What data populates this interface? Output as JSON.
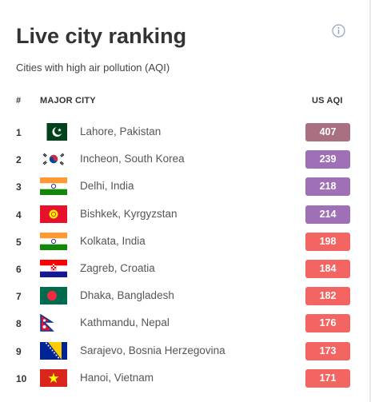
{
  "header": {
    "title": "Live city ranking",
    "subtitle": "Cities with high air pollution (AQI)",
    "info_icon": "info-circle-icon"
  },
  "columns": {
    "rank": "#",
    "city": "MAJOR CITY",
    "aqi": "US AQI"
  },
  "colors": {
    "hazardous": "#a87080",
    "very_unhealthy": "#a070b6",
    "unhealthy": "#f26563"
  },
  "rows": [
    {
      "rank": "1",
      "city": "Lahore, Pakistan",
      "aqi": "407",
      "level": "hazardous",
      "flag": "pakistan-flag-icon"
    },
    {
      "rank": "2",
      "city": "Incheon, South Korea",
      "aqi": "239",
      "level": "very_unhealthy",
      "flag": "south-korea-flag-icon"
    },
    {
      "rank": "3",
      "city": "Delhi, India",
      "aqi": "218",
      "level": "very_unhealthy",
      "flag": "india-flag-icon"
    },
    {
      "rank": "4",
      "city": "Bishkek, Kyrgyzstan",
      "aqi": "214",
      "level": "very_unhealthy",
      "flag": "kyrgyzstan-flag-icon"
    },
    {
      "rank": "5",
      "city": "Kolkata, India",
      "aqi": "198",
      "level": "unhealthy",
      "flag": "india-flag-icon"
    },
    {
      "rank": "6",
      "city": "Zagreb, Croatia",
      "aqi": "184",
      "level": "unhealthy",
      "flag": "croatia-flag-icon"
    },
    {
      "rank": "7",
      "city": "Dhaka, Bangladesh",
      "aqi": "182",
      "level": "unhealthy",
      "flag": "bangladesh-flag-icon"
    },
    {
      "rank": "8",
      "city": "Kathmandu, Nepal",
      "aqi": "176",
      "level": "unhealthy",
      "flag": "nepal-flag-icon"
    },
    {
      "rank": "9",
      "city": "Sarajevo, Bosnia Herzegovina",
      "aqi": "173",
      "level": "unhealthy",
      "flag": "bosnia-herzegovina-flag-icon"
    },
    {
      "rank": "10",
      "city": "Hanoi, Vietnam",
      "aqi": "171",
      "level": "unhealthy",
      "flag": "vietnam-flag-icon"
    }
  ]
}
